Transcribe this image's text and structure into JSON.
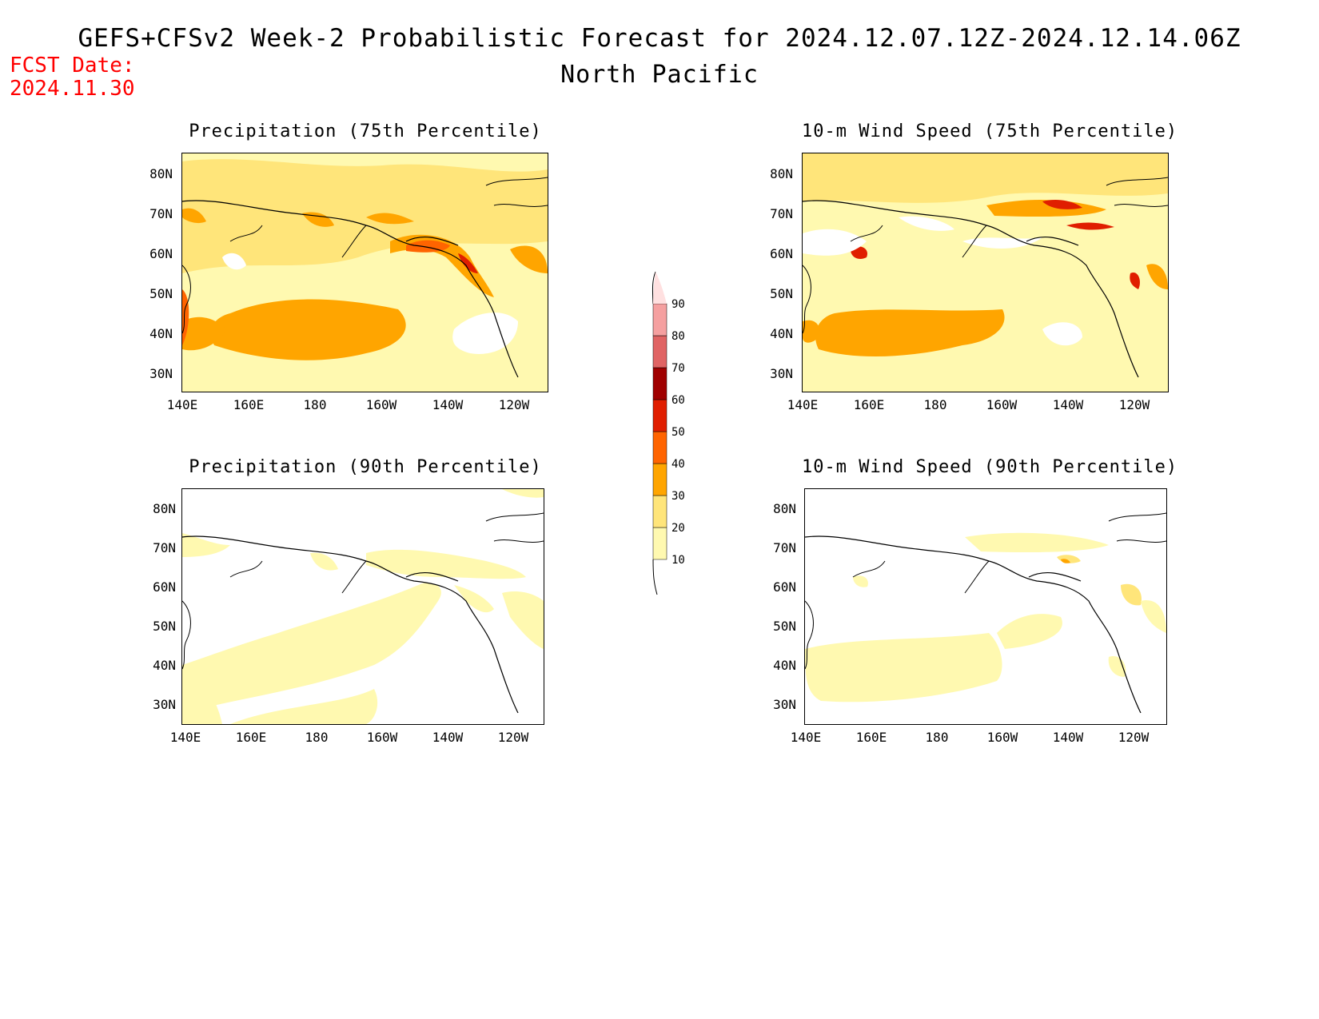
{
  "header": {
    "title": "GEFS+CFSv2 Week-2 Probabilistic Forecast for 2024.12.07.12Z-2024.12.14.06Z",
    "region": "North Pacific",
    "fcst_label": "FCST Date:",
    "fcst_date": "2024.11.30"
  },
  "panels": [
    {
      "title": "Precipitation (75th Percentile)"
    },
    {
      "title": "10-m Wind Speed (75th Percentile)"
    },
    {
      "title": "Precipitation (90th Percentile)"
    },
    {
      "title": "10-m Wind Speed (90th Percentile)"
    }
  ],
  "axes": {
    "lat_labels": [
      "80N",
      "70N",
      "60N",
      "50N",
      "40N",
      "30N"
    ],
    "lon_labels": [
      "140E",
      "160E",
      "180",
      "160W",
      "140W",
      "120W"
    ]
  },
  "colorbar": {
    "levels": [
      "10",
      "20",
      "30",
      "40",
      "50",
      "60",
      "70",
      "80",
      "90"
    ],
    "colors": [
      "#fff9b0",
      "#ffe57a",
      "#ffa500",
      "#ff6400",
      "#e01e00",
      "#a00000",
      "#e06464",
      "#f5a0a0",
      "#ffe0e0"
    ]
  }
}
